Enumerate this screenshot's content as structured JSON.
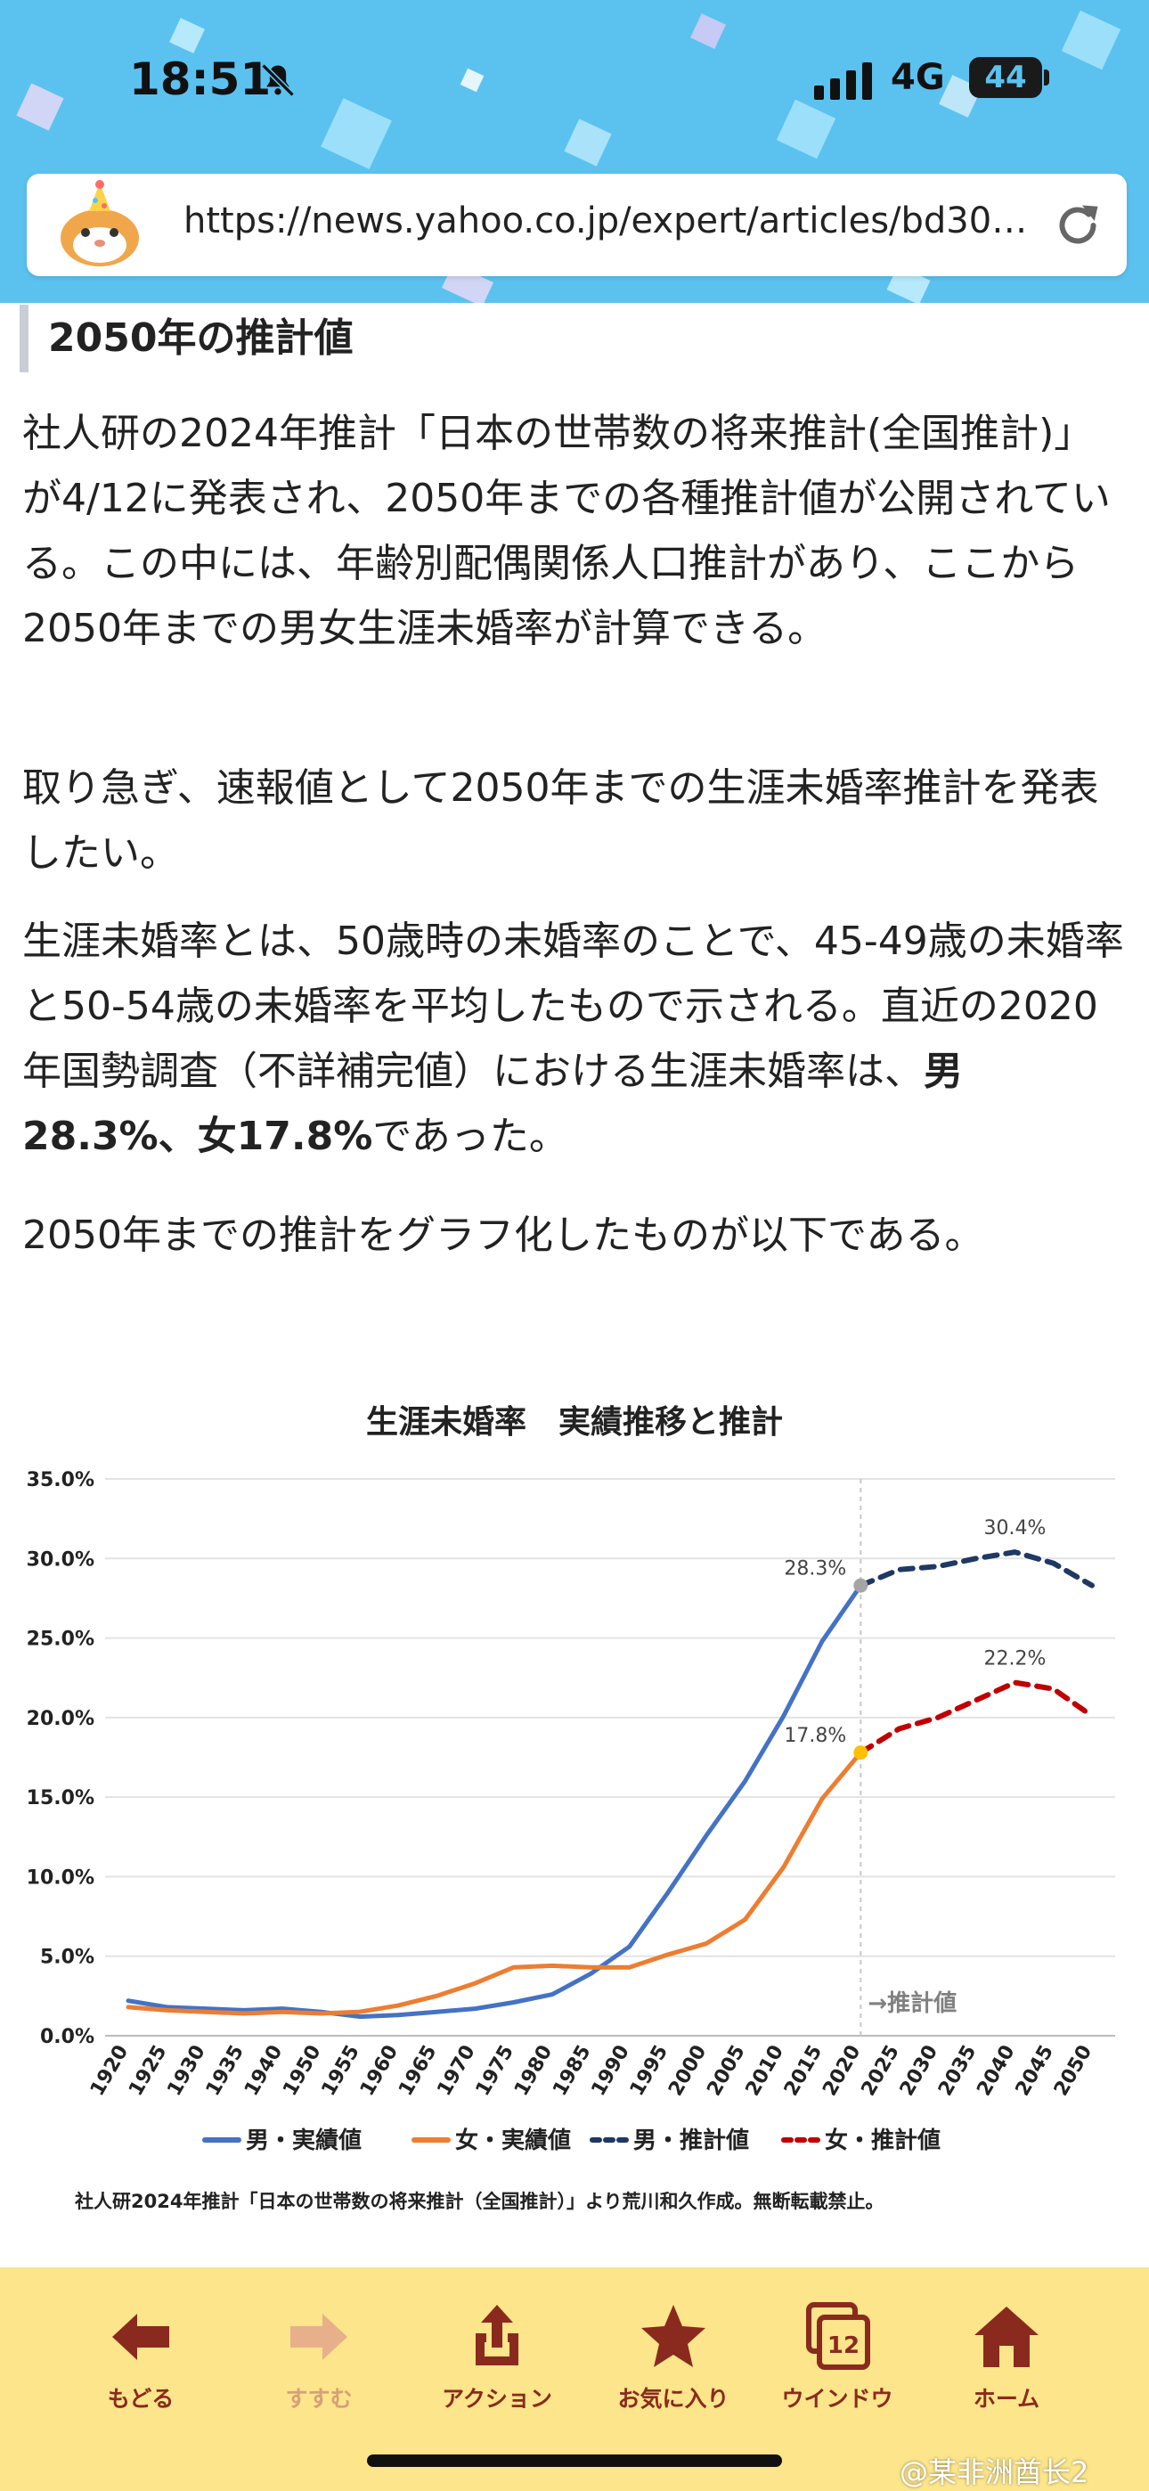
{
  "status_bar": {
    "time": "18:51",
    "network": "4G",
    "battery": "44"
  },
  "browser": {
    "url": "https://news.yahoo.co.jp/expert/articles/bd303..."
  },
  "article": {
    "heading": "2050年の推計値",
    "p1": "社人研の2024年推計「日本の世帯数の将来推計(全国推計)」が4/12に発表され、2050年までの各種推計値が公開されている。この中には、年齢別配偶関係人口推計があり、ここから2050年までの男女生涯未婚率が計算できる。",
    "p2": "取り急ぎ、速報値として2050年までの生涯未婚率推計を発表したい。",
    "p3_a": "生涯未婚率とは、50歳時の未婚率のことで、45-49歳の未婚率と50-54歳の未婚率を平均したもので示される。直近の2020年国勢調査（不詳補完値）における生涯未婚率は、",
    "p3_bold": "男28.3%、女17.8%",
    "p3_b": "であった。",
    "p4": "2050年までの推計をグラフ化したものが以下である。"
  },
  "chart_data": {
    "type": "line",
    "title": "生涯未婚率　実績推移と推計",
    "x": [
      1920,
      1925,
      1930,
      1935,
      1940,
      1950,
      1955,
      1960,
      1965,
      1970,
      1975,
      1980,
      1985,
      1990,
      1995,
      2000,
      2005,
      2010,
      2015,
      2020,
      2025,
      2030,
      2035,
      2040,
      2045,
      2050
    ],
    "ylim": [
      0,
      35
    ],
    "yticks": [
      "0.0%",
      "5.0%",
      "10.0%",
      "15.0%",
      "20.0%",
      "25.0%",
      "30.0%",
      "35.0%"
    ],
    "grid": true,
    "legend_position": "bottom",
    "projection_marker": {
      "x": 2020,
      "label": "→推計値"
    },
    "series": [
      {
        "name": "男・実績値",
        "color": "#4472c4",
        "dash": false,
        "points": [
          [
            1920,
            2.2
          ],
          [
            1925,
            1.8
          ],
          [
            1930,
            1.7
          ],
          [
            1935,
            1.6
          ],
          [
            1940,
            1.7
          ],
          [
            1950,
            1.5
          ],
          [
            1955,
            1.2
          ],
          [
            1960,
            1.3
          ],
          [
            1965,
            1.5
          ],
          [
            1970,
            1.7
          ],
          [
            1975,
            2.1
          ],
          [
            1980,
            2.6
          ],
          [
            1985,
            3.9
          ],
          [
            1990,
            5.6
          ],
          [
            1995,
            9.0
          ],
          [
            2000,
            12.6
          ],
          [
            2005,
            16.0
          ],
          [
            2010,
            20.1
          ],
          [
            2015,
            24.8
          ],
          [
            2020,
            28.3
          ]
        ]
      },
      {
        "name": "女・実績値",
        "color": "#ed7d31",
        "dash": false,
        "points": [
          [
            1920,
            1.8
          ],
          [
            1925,
            1.6
          ],
          [
            1930,
            1.5
          ],
          [
            1935,
            1.4
          ],
          [
            1940,
            1.5
          ],
          [
            1950,
            1.4
          ],
          [
            1955,
            1.5
          ],
          [
            1960,
            1.9
          ],
          [
            1965,
            2.5
          ],
          [
            1970,
            3.3
          ],
          [
            1975,
            4.3
          ],
          [
            1980,
            4.4
          ],
          [
            1985,
            4.3
          ],
          [
            1990,
            4.3
          ],
          [
            1995,
            5.1
          ],
          [
            2000,
            5.8
          ],
          [
            2005,
            7.3
          ],
          [
            2010,
            10.6
          ],
          [
            2015,
            14.9
          ],
          [
            2020,
            17.8
          ]
        ]
      },
      {
        "name": "男・推計値",
        "color": "#1f3864",
        "dash": true,
        "points": [
          [
            2020,
            28.3
          ],
          [
            2025,
            29.3
          ],
          [
            2030,
            29.5
          ],
          [
            2035,
            30.0
          ],
          [
            2040,
            30.4
          ],
          [
            2045,
            29.7
          ],
          [
            2050,
            28.3
          ]
        ]
      },
      {
        "name": "女・推計値",
        "color": "#c00000",
        "dash": true,
        "points": [
          [
            2020,
            17.8
          ],
          [
            2025,
            19.3
          ],
          [
            2030,
            20.0
          ],
          [
            2035,
            21.1
          ],
          [
            2040,
            22.2
          ],
          [
            2045,
            21.8
          ],
          [
            2050,
            20.1
          ]
        ]
      }
    ],
    "annotations": [
      {
        "x": 2020,
        "y": 28.3,
        "label": "28.3%",
        "color": "#a5a5a5"
      },
      {
        "x": 2020,
        "y": 17.8,
        "label": "17.8%",
        "color": "#ffc000"
      },
      {
        "x": 2040,
        "y": 30.4,
        "label": "30.4%"
      },
      {
        "x": 2040,
        "y": 22.2,
        "label": "22.2%"
      }
    ],
    "source_note": "社人研2024年推計「日本の世帯数の将来推計（全国推計）」より荒川和久作成。無断転載禁止。"
  },
  "toolbar": {
    "back_label": "もどる",
    "forward_label": "すすむ",
    "action_label": "アクション",
    "favorite_label": "お気に入り",
    "window_label": "ウインドウ",
    "window_count": "12",
    "home_label": "ホーム"
  },
  "watermark": "@某非洲酋长2"
}
